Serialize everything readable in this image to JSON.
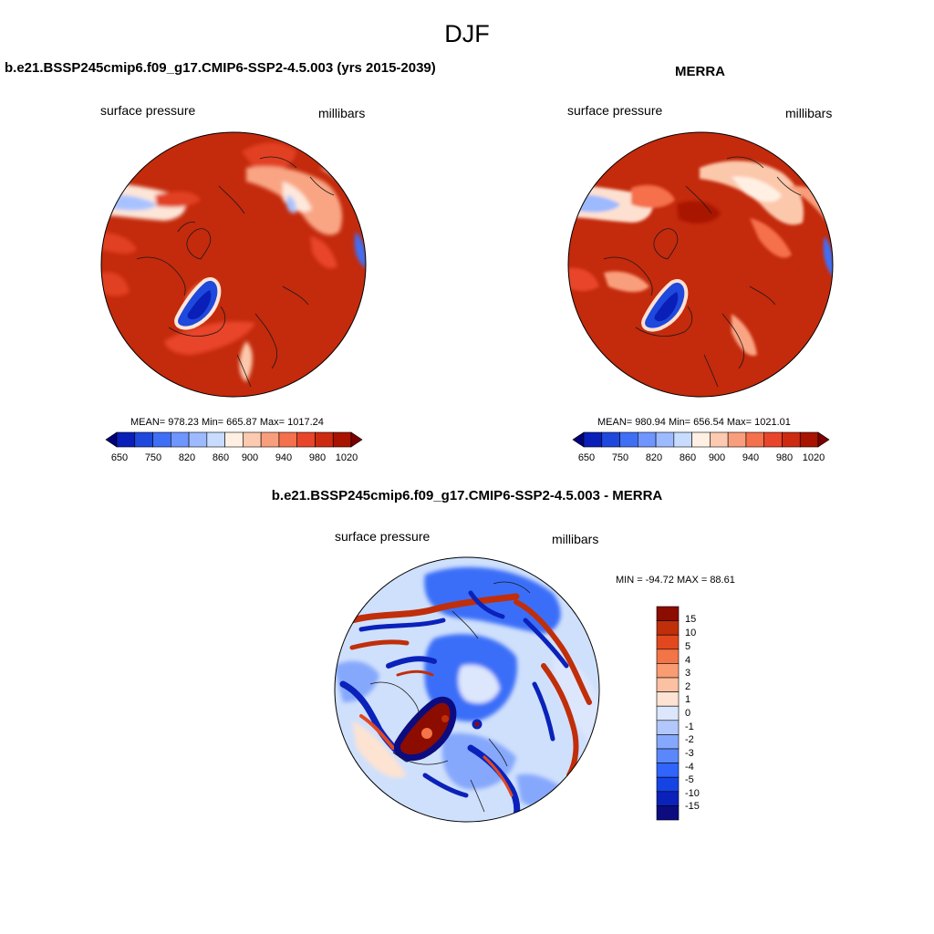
{
  "figure": {
    "title": "DJF"
  },
  "colors": {
    "abs_palette": [
      "#00007a",
      "#0a1fb8",
      "#1f48dc",
      "#3f6ff5",
      "#6f96ff",
      "#9dbaff",
      "#c8dcff",
      "#fff0e3",
      "#fccab0",
      "#f99e7c",
      "#f5704c",
      "#e8452b",
      "#cd2a12",
      "#a81400",
      "#7a0000"
    ],
    "diff_palette": [
      "#0c0c80",
      "#0a22ba",
      "#1644e4",
      "#3064fa",
      "#5a88fc",
      "#86a8fc",
      "#b2c8fc",
      "#dce6fc",
      "#fde3d2",
      "#fcc0a2",
      "#f99c72",
      "#f37446",
      "#e24820",
      "#c02e0a",
      "#8c0c00"
    ]
  },
  "panels": {
    "model": {
      "title": "b.e21.BSSP245cmip6.f09_g17.CMIP6-SSP2-4.5.003 (yrs 2015-2039)",
      "variable": "surface pressure",
      "units": "millibars",
      "stats": "MEAN= 978.23  Min= 665.87  Max= 1017.24"
    },
    "obs": {
      "title": "MERRA",
      "variable": "surface pressure",
      "units": "millibars",
      "stats": "MEAN= 980.94  Min= 656.54  Max= 1021.01"
    },
    "diff": {
      "title": "b.e21.BSSP245cmip6.f09_g17.CMIP6-SSP2-4.5.003 - MERRA",
      "variable": "surface pressure",
      "units": "millibars",
      "stats": "MIN = -94.72 MAX =  88.61"
    }
  },
  "colorbars": {
    "abs_ticks": [
      "650",
      "750",
      "820",
      "860",
      "900",
      "940",
      "980",
      "1020"
    ],
    "diff_ticks": [
      "15",
      "10",
      "5",
      "4",
      "3",
      "2",
      "1",
      "0",
      "-1",
      "-2",
      "-3",
      "-4",
      "-5",
      "-10",
      "-15"
    ]
  }
}
